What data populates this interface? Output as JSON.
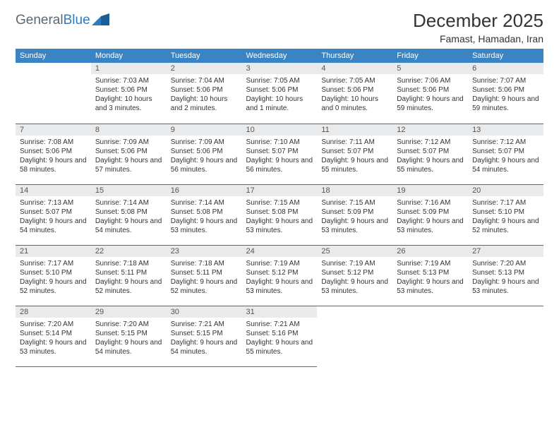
{
  "brand": {
    "name_a": "General",
    "name_b": "Blue"
  },
  "title": "December 2025",
  "location": "Famast, Hamadan, Iran",
  "colors": {
    "header_bg": "#3b84c4",
    "header_text": "#ffffff",
    "daynum_bg": "#e9eaeb",
    "rule": "#3b6f9f",
    "logo_gray": "#5d6872",
    "logo_blue": "#2f7bbf"
  },
  "weekdays": [
    "Sunday",
    "Monday",
    "Tuesday",
    "Wednesday",
    "Thursday",
    "Friday",
    "Saturday"
  ],
  "start_offset": 1,
  "days": [
    {
      "n": 1,
      "sr": "7:03 AM",
      "ss": "5:06 PM",
      "dl": "10 hours and 3 minutes."
    },
    {
      "n": 2,
      "sr": "7:04 AM",
      "ss": "5:06 PM",
      "dl": "10 hours and 2 minutes."
    },
    {
      "n": 3,
      "sr": "7:05 AM",
      "ss": "5:06 PM",
      "dl": "10 hours and 1 minute."
    },
    {
      "n": 4,
      "sr": "7:05 AM",
      "ss": "5:06 PM",
      "dl": "10 hours and 0 minutes."
    },
    {
      "n": 5,
      "sr": "7:06 AM",
      "ss": "5:06 PM",
      "dl": "9 hours and 59 minutes."
    },
    {
      "n": 6,
      "sr": "7:07 AM",
      "ss": "5:06 PM",
      "dl": "9 hours and 59 minutes."
    },
    {
      "n": 7,
      "sr": "7:08 AM",
      "ss": "5:06 PM",
      "dl": "9 hours and 58 minutes."
    },
    {
      "n": 8,
      "sr": "7:09 AM",
      "ss": "5:06 PM",
      "dl": "9 hours and 57 minutes."
    },
    {
      "n": 9,
      "sr": "7:09 AM",
      "ss": "5:06 PM",
      "dl": "9 hours and 56 minutes."
    },
    {
      "n": 10,
      "sr": "7:10 AM",
      "ss": "5:07 PM",
      "dl": "9 hours and 56 minutes."
    },
    {
      "n": 11,
      "sr": "7:11 AM",
      "ss": "5:07 PM",
      "dl": "9 hours and 55 minutes."
    },
    {
      "n": 12,
      "sr": "7:12 AM",
      "ss": "5:07 PM",
      "dl": "9 hours and 55 minutes."
    },
    {
      "n": 13,
      "sr": "7:12 AM",
      "ss": "5:07 PM",
      "dl": "9 hours and 54 minutes."
    },
    {
      "n": 14,
      "sr": "7:13 AM",
      "ss": "5:07 PM",
      "dl": "9 hours and 54 minutes."
    },
    {
      "n": 15,
      "sr": "7:14 AM",
      "ss": "5:08 PM",
      "dl": "9 hours and 54 minutes."
    },
    {
      "n": 16,
      "sr": "7:14 AM",
      "ss": "5:08 PM",
      "dl": "9 hours and 53 minutes."
    },
    {
      "n": 17,
      "sr": "7:15 AM",
      "ss": "5:08 PM",
      "dl": "9 hours and 53 minutes."
    },
    {
      "n": 18,
      "sr": "7:15 AM",
      "ss": "5:09 PM",
      "dl": "9 hours and 53 minutes."
    },
    {
      "n": 19,
      "sr": "7:16 AM",
      "ss": "5:09 PM",
      "dl": "9 hours and 53 minutes."
    },
    {
      "n": 20,
      "sr": "7:17 AM",
      "ss": "5:10 PM",
      "dl": "9 hours and 52 minutes."
    },
    {
      "n": 21,
      "sr": "7:17 AM",
      "ss": "5:10 PM",
      "dl": "9 hours and 52 minutes."
    },
    {
      "n": 22,
      "sr": "7:18 AM",
      "ss": "5:11 PM",
      "dl": "9 hours and 52 minutes."
    },
    {
      "n": 23,
      "sr": "7:18 AM",
      "ss": "5:11 PM",
      "dl": "9 hours and 52 minutes."
    },
    {
      "n": 24,
      "sr": "7:19 AM",
      "ss": "5:12 PM",
      "dl": "9 hours and 53 minutes."
    },
    {
      "n": 25,
      "sr": "7:19 AM",
      "ss": "5:12 PM",
      "dl": "9 hours and 53 minutes."
    },
    {
      "n": 26,
      "sr": "7:19 AM",
      "ss": "5:13 PM",
      "dl": "9 hours and 53 minutes."
    },
    {
      "n": 27,
      "sr": "7:20 AM",
      "ss": "5:13 PM",
      "dl": "9 hours and 53 minutes."
    },
    {
      "n": 28,
      "sr": "7:20 AM",
      "ss": "5:14 PM",
      "dl": "9 hours and 53 minutes."
    },
    {
      "n": 29,
      "sr": "7:20 AM",
      "ss": "5:15 PM",
      "dl": "9 hours and 54 minutes."
    },
    {
      "n": 30,
      "sr": "7:21 AM",
      "ss": "5:15 PM",
      "dl": "9 hours and 54 minutes."
    },
    {
      "n": 31,
      "sr": "7:21 AM",
      "ss": "5:16 PM",
      "dl": "9 hours and 55 minutes."
    }
  ],
  "labels": {
    "sunrise": "Sunrise:",
    "sunset": "Sunset:",
    "daylight": "Daylight:"
  }
}
